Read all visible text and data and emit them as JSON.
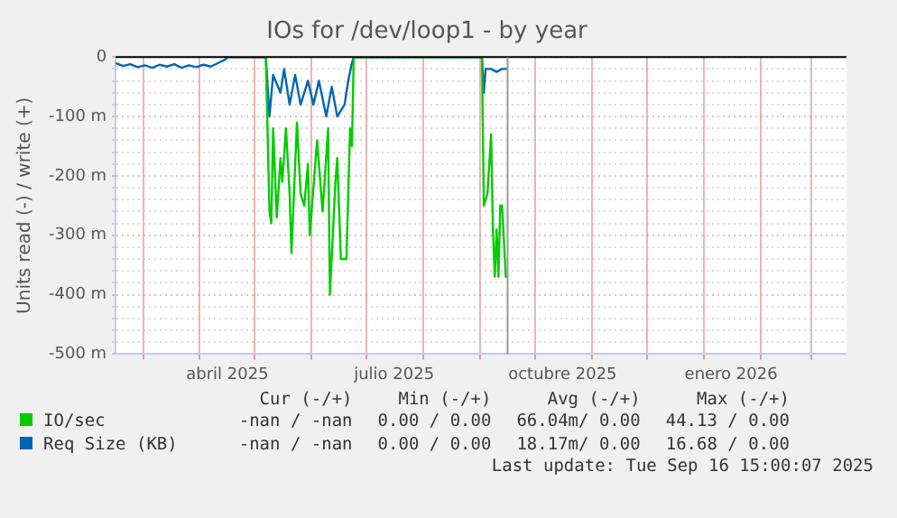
{
  "chart_data": {
    "type": "line",
    "title": "IOs for /dev/loop1 - by year",
    "ylabel": "Units read (-) / write (+)",
    "xlim": [
      "2025-02-14",
      "2026-03-20"
    ],
    "xticks": [
      {
        "value": "2025-03-01",
        "label": null
      },
      {
        "value": "2025-04-01",
        "label": null
      },
      {
        "value": "2025-04-16",
        "label": "abril 2025"
      },
      {
        "value": "2025-05-01",
        "label": null
      },
      {
        "value": "2025-06-01",
        "label": null
      },
      {
        "value": "2025-07-01",
        "label": null
      },
      {
        "value": "2025-07-16",
        "label": "julio 2025"
      },
      {
        "value": "2025-08-01",
        "label": null
      },
      {
        "value": "2025-09-01",
        "label": null
      },
      {
        "value": "2025-10-01",
        "label": null
      },
      {
        "value": "2025-10-16",
        "label": "octubre 2025"
      },
      {
        "value": "2025-11-01",
        "label": null
      },
      {
        "value": "2025-12-01",
        "label": null
      },
      {
        "value": "2026-01-01",
        "label": null
      },
      {
        "value": "2026-01-16",
        "label": "enero 2026"
      },
      {
        "value": "2026-02-01",
        "label": null
      },
      {
        "value": "2026-03-01",
        "label": null
      }
    ],
    "ylim": [
      -500,
      0
    ],
    "yticks": [
      {
        "value": -500,
        "label": "-500 m"
      },
      {
        "value": -480,
        "label": null
      },
      {
        "value": -460,
        "label": null
      },
      {
        "value": -440,
        "label": null
      },
      {
        "value": -420,
        "label": null
      },
      {
        "value": -400,
        "label": "-400 m"
      },
      {
        "value": -380,
        "label": null
      },
      {
        "value": -360,
        "label": null
      },
      {
        "value": -340,
        "label": null
      },
      {
        "value": -320,
        "label": null
      },
      {
        "value": -300,
        "label": "-300 m"
      },
      {
        "value": -280,
        "label": null
      },
      {
        "value": -260,
        "label": null
      },
      {
        "value": -240,
        "label": null
      },
      {
        "value": -220,
        "label": null
      },
      {
        "value": -200,
        "label": "-200 m"
      },
      {
        "value": -180,
        "label": null
      },
      {
        "value": -160,
        "label": null
      },
      {
        "value": -140,
        "label": null
      },
      {
        "value": -120,
        "label": null
      },
      {
        "value": -100,
        "label": "-100 m"
      },
      {
        "value": -80,
        "label": null
      },
      {
        "value": -60,
        "label": null
      },
      {
        "value": -40,
        "label": null
      },
      {
        "value": -20,
        "label": null
      },
      0
    ],
    "grid": true,
    "legend": "bottom",
    "marker": "none",
    "line_style": "solid",
    "ref_lines": [
      {
        "axis": "y",
        "value": 0,
        "color": "#000000"
      },
      {
        "axis": "x",
        "value": "2025-09-16",
        "color": "#999999"
      }
    ],
    "series": [
      {
        "name": "IO/sec",
        "color": "#00cc00",
        "x": [
          "2025-05-07",
          "2025-05-09",
          "2025-05-10",
          "2025-05-11",
          "2025-05-13",
          "2025-05-15",
          "2025-05-16",
          "2025-05-18",
          "2025-05-20",
          "2025-05-21",
          "2025-05-24",
          "2025-05-26",
          "2025-05-28",
          "2025-05-30",
          "2025-05-31",
          "2025-06-04",
          "2025-06-07",
          "2025-06-10",
          "2025-06-11",
          "2025-06-14",
          "2025-06-15",
          "2025-06-17",
          "2025-06-20",
          "2025-06-22",
          "2025-06-23",
          "2025-06-24",
          "2025-09-02",
          "2025-09-03",
          "2025-09-05",
          "2025-09-07",
          "2025-09-08",
          "2025-09-09",
          "2025-09-10",
          "2025-09-11",
          "2025-09-12",
          "2025-09-13",
          "2025-09-15",
          "2025-09-16"
        ],
        "values": [
          0,
          -260,
          -280,
          -120,
          -270,
          -170,
          -210,
          -120,
          -230,
          -330,
          -110,
          -230,
          -250,
          -180,
          -300,
          -140,
          -260,
          -120,
          -400,
          -210,
          -170,
          -340,
          -340,
          -120,
          -150,
          0,
          0,
          -250,
          -230,
          -130,
          -290,
          -370,
          -290,
          -370,
          -250,
          -250,
          -370,
          -370
        ]
      },
      {
        "name": "Req Size (KB)",
        "color": "#0066b3",
        "x": [
          "2025-02-14",
          "2025-02-18",
          "2025-02-22",
          "2025-02-26",
          "2025-03-02",
          "2025-03-06",
          "2025-03-10",
          "2025-03-14",
          "2025-03-18",
          "2025-03-22",
          "2025-03-26",
          "2025-03-30",
          "2025-04-03",
          "2025-04-07",
          "2025-04-11",
          "2025-04-15",
          "2025-04-16",
          "2025-05-07",
          "2025-05-09",
          "2025-05-11",
          "2025-05-15",
          "2025-05-17",
          "2025-05-20",
          "2025-05-23",
          "2025-05-26",
          "2025-05-30",
          "2025-06-02",
          "2025-06-05",
          "2025-06-09",
          "2025-06-12",
          "2025-06-15",
          "2025-06-19",
          "2025-06-21",
          "2025-06-23",
          "2025-06-24",
          "2025-09-02",
          "2025-09-03",
          "2025-09-04",
          "2025-09-07",
          "2025-09-10",
          "2025-09-13",
          "2025-09-16"
        ],
        "values": [
          -10,
          -15,
          -12,
          -17,
          -14,
          -18,
          -13,
          -16,
          -12,
          -18,
          -14,
          -17,
          -13,
          -16,
          -10,
          -4,
          0,
          0,
          -100,
          -30,
          -60,
          -20,
          -80,
          -30,
          -80,
          -40,
          -80,
          -40,
          -100,
          -50,
          -100,
          -80,
          -40,
          -10,
          0,
          0,
          -60,
          -20,
          -20,
          -25,
          -20,
          -20
        ]
      }
    ],
    "annotations": [
      "Cur (-/+)",
      "Min (-/+)",
      "Avg (-/+)",
      "Max (-/+)",
      "-nan / -nan",
      "0.00 / 0.00",
      "66.04m/ 0.00",
      "44.13 / 0.00",
      "-nan / -nan",
      "0.00 / 0.00",
      "18.17m/ 0.00",
      "16.68 / 0.00",
      "Last update: Tue Sep 16 15:00:07 2025"
    ]
  }
}
